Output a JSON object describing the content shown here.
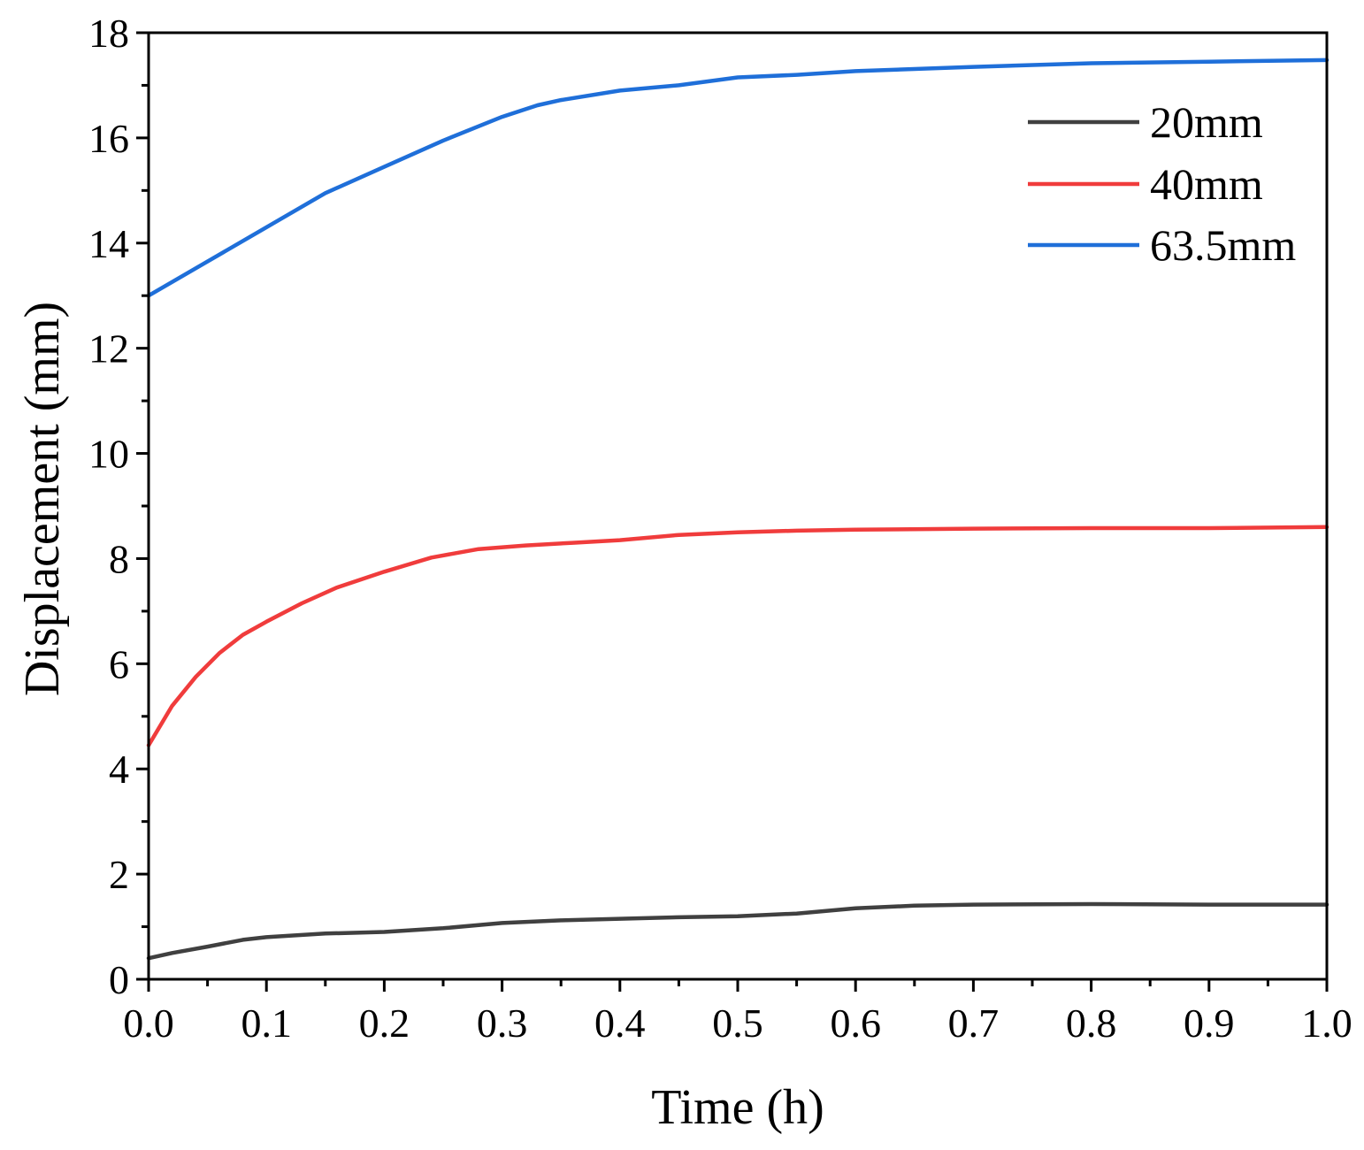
{
  "chart_data": {
    "type": "line",
    "title": "",
    "xlabel": "Time (h)",
    "ylabel": "Displacement (mm)",
    "xlim": [
      0.0,
      1.0
    ],
    "ylim": [
      0,
      18
    ],
    "x_ticks": [
      "0.0",
      "0.1",
      "0.2",
      "0.3",
      "0.4",
      "0.5",
      "0.6",
      "0.7",
      "0.8",
      "0.9",
      "1.0"
    ],
    "y_ticks": [
      "0",
      "2",
      "4",
      "6",
      "8",
      "10",
      "12",
      "14",
      "16",
      "18"
    ],
    "grid": false,
    "legend_position": "top-right",
    "series": [
      {
        "name": "20mm",
        "color": "#404040",
        "x": [
          0.0,
          0.02,
          0.05,
          0.08,
          0.1,
          0.15,
          0.2,
          0.25,
          0.3,
          0.35,
          0.4,
          0.45,
          0.5,
          0.55,
          0.6,
          0.65,
          0.7,
          0.8,
          0.9,
          1.0
        ],
        "y": [
          0.4,
          0.5,
          0.62,
          0.75,
          0.8,
          0.87,
          0.9,
          0.97,
          1.07,
          1.12,
          1.15,
          1.18,
          1.2,
          1.25,
          1.35,
          1.4,
          1.42,
          1.43,
          1.42,
          1.42
        ]
      },
      {
        "name": "40mm",
        "color": "#f03c3c",
        "x": [
          0.0,
          0.02,
          0.04,
          0.06,
          0.08,
          0.1,
          0.13,
          0.16,
          0.2,
          0.24,
          0.28,
          0.32,
          0.36,
          0.4,
          0.45,
          0.5,
          0.55,
          0.6,
          0.7,
          0.8,
          0.9,
          1.0
        ],
        "y": [
          4.45,
          5.2,
          5.75,
          6.2,
          6.55,
          6.8,
          7.15,
          7.45,
          7.75,
          8.02,
          8.18,
          8.25,
          8.3,
          8.35,
          8.45,
          8.5,
          8.53,
          8.55,
          8.57,
          8.58,
          8.58,
          8.6
        ]
      },
      {
        "name": "63.5mm",
        "color": "#1f6fd9",
        "x": [
          0.0,
          0.05,
          0.1,
          0.15,
          0.2,
          0.25,
          0.3,
          0.33,
          0.35,
          0.4,
          0.45,
          0.5,
          0.55,
          0.6,
          0.7,
          0.8,
          0.9,
          1.0
        ],
        "y": [
          13.0,
          13.65,
          14.3,
          14.95,
          15.45,
          15.95,
          16.4,
          16.62,
          16.72,
          16.9,
          17.0,
          17.15,
          17.2,
          17.27,
          17.35,
          17.42,
          17.45,
          17.48
        ]
      }
    ]
  }
}
